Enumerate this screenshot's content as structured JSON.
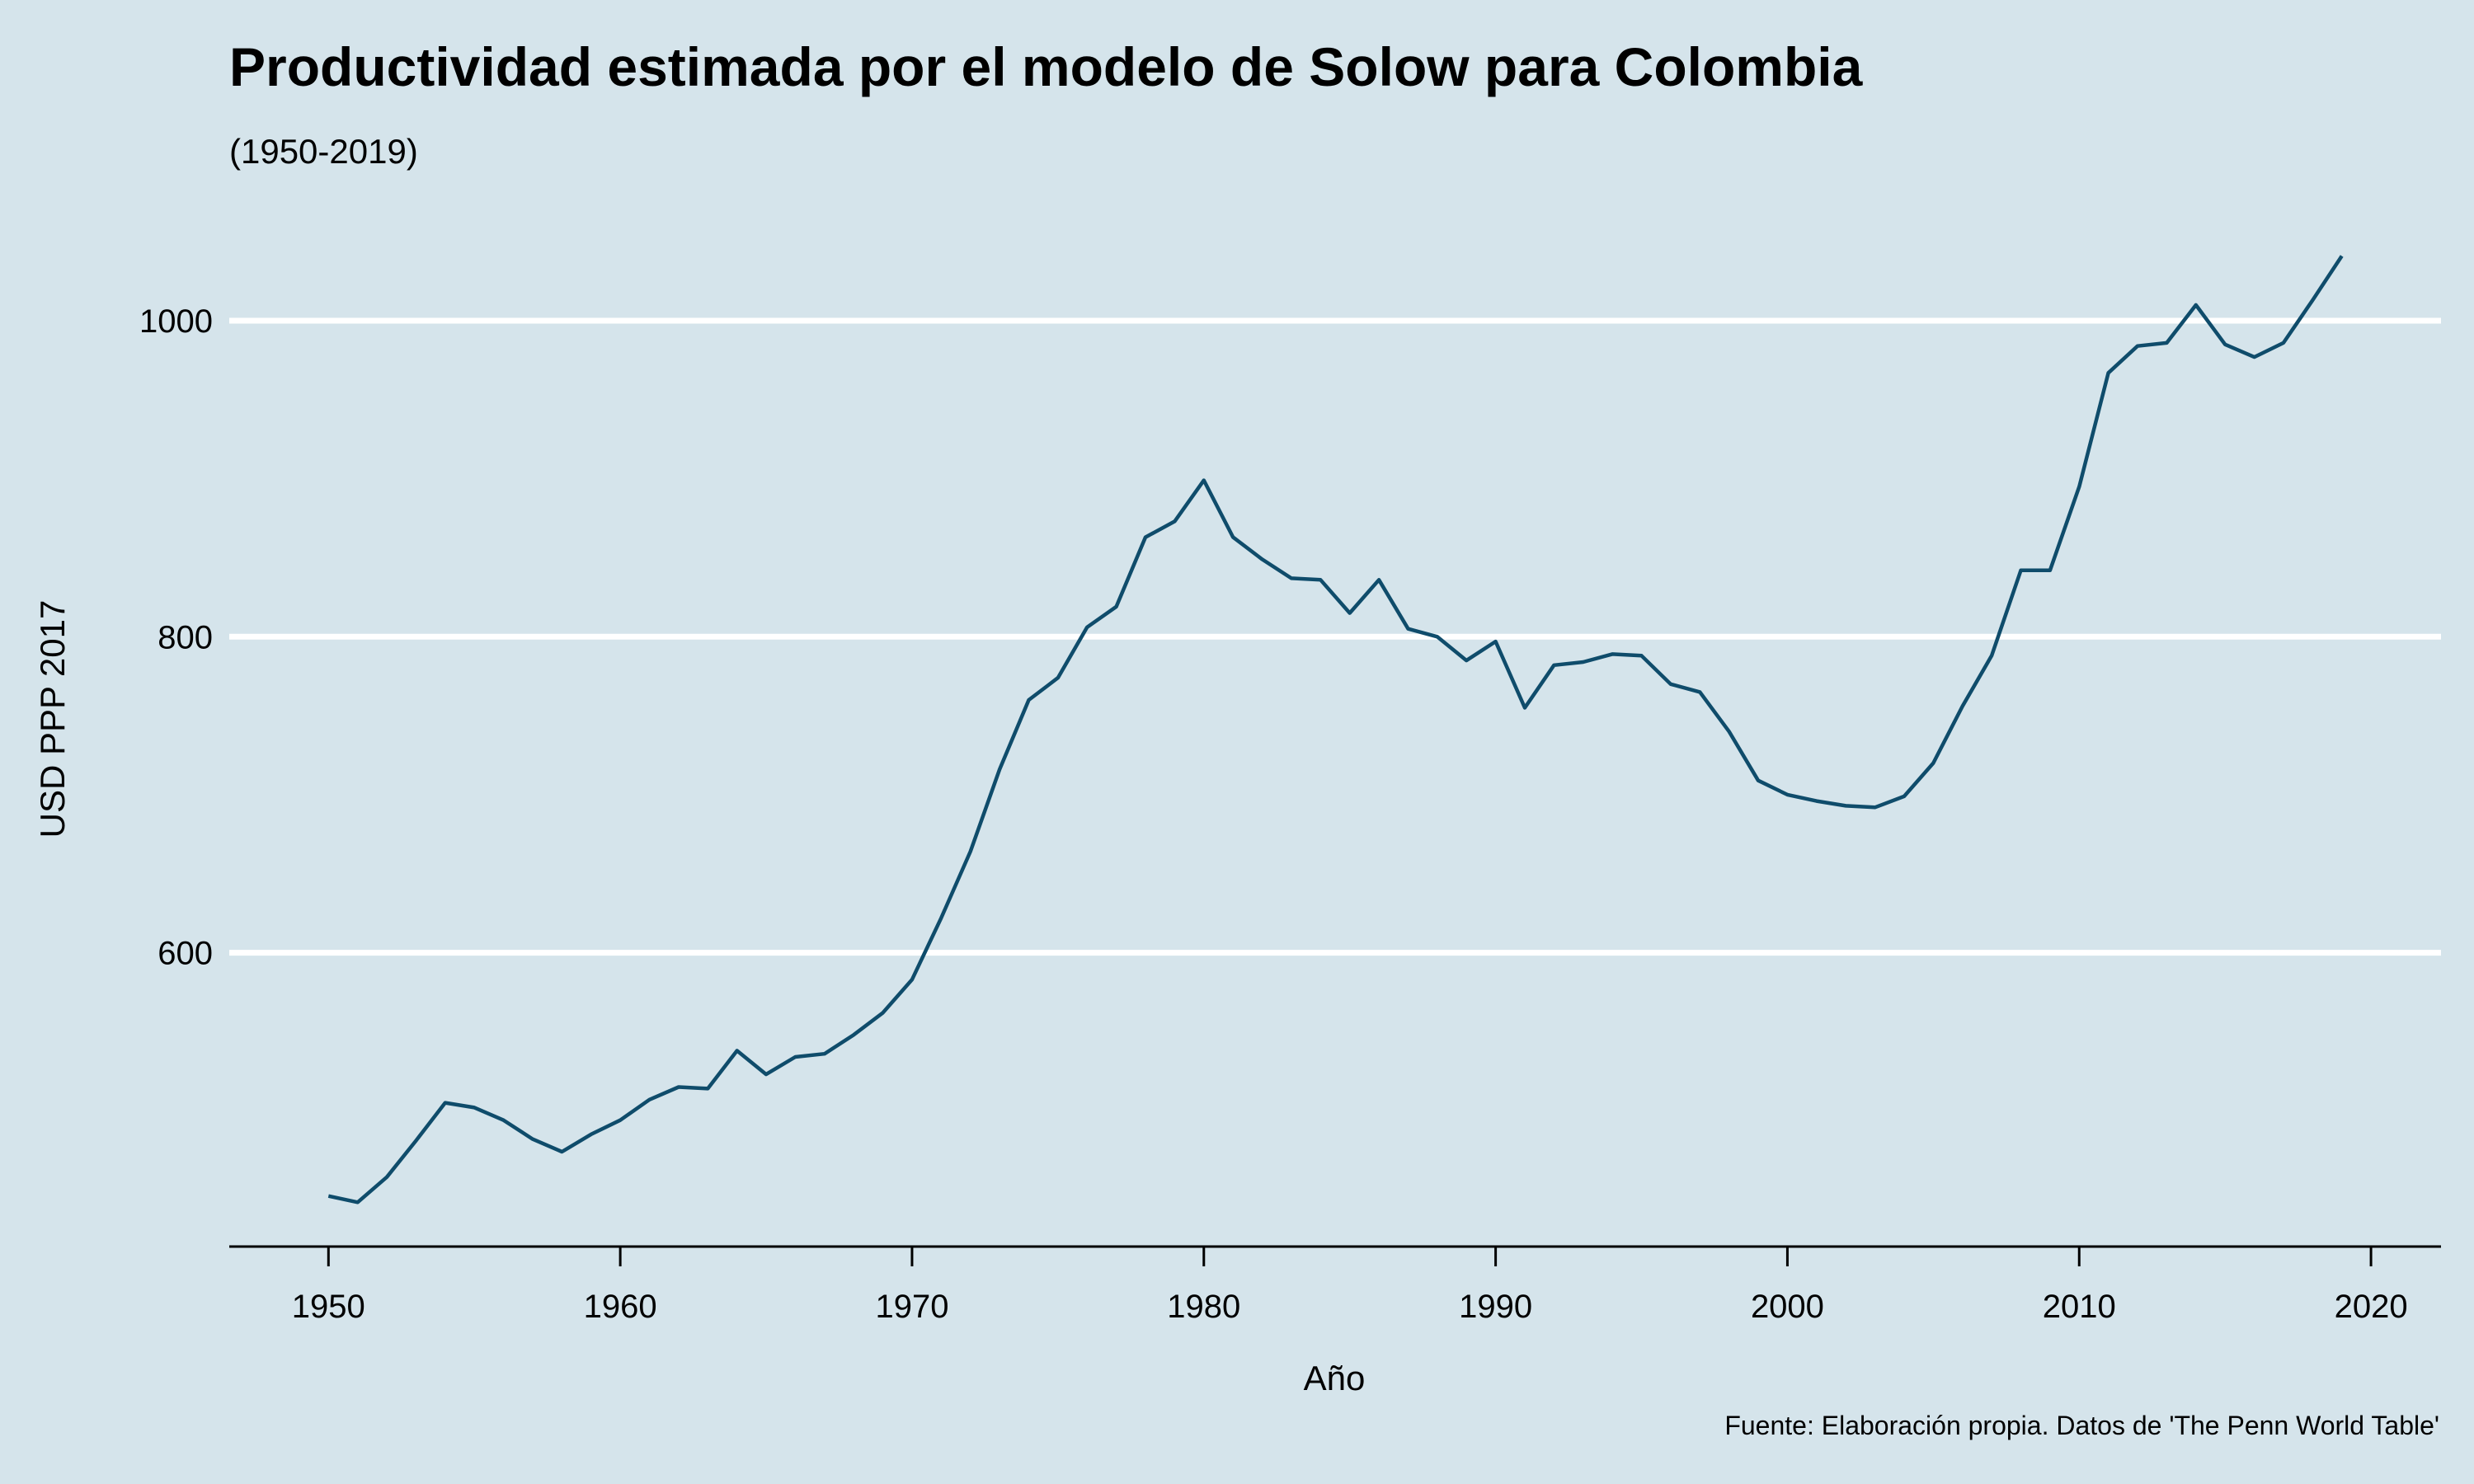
{
  "chart_data": {
    "type": "line",
    "title": "Productividad estimada por el modelo de Solow para Colombia",
    "subtitle": "(1950-2019)",
    "xlabel": "Año",
    "ylabel": "USD PPP 2017",
    "caption": "Fuente: Elaboración propia. Datos de 'The Penn World Table'",
    "xlim": [
      1946.6,
      2022.4
    ],
    "ylim": [
      414,
      1083
    ],
    "x_ticks": [
      1950,
      1960,
      1970,
      1980,
      1990,
      2000,
      2010,
      2020
    ],
    "y_ticks": [
      600,
      800,
      1000
    ],
    "grid": {
      "horizontal": true,
      "vertical": false
    },
    "colors": {
      "background": "#d5e4eb",
      "line": "#0f4c6b",
      "grid": "#ffffff"
    },
    "series": [
      {
        "x": [
          1950,
          1951,
          1952,
          1953,
          1954,
          1955,
          1956,
          1957,
          1958,
          1959,
          1960,
          1961,
          1962,
          1963,
          1964,
          1965,
          1966,
          1967,
          1968,
          1969,
          1970,
          1971,
          1972,
          1973,
          1974,
          1975,
          1976,
          1977,
          1978,
          1979,
          1980,
          1981,
          1982,
          1983,
          1984,
          1985,
          1986,
          1987,
          1988,
          1989,
          1990,
          1991,
          1992,
          1993,
          1994,
          1995,
          1996,
          1997,
          1998,
          1999,
          2000,
          2001,
          2002,
          2003,
          2004,
          2005,
          2006,
          2007,
          2008,
          2009,
          2010,
          2011,
          2012,
          2013,
          2014,
          2015,
          2016,
          2017,
          2018,
          2019
        ],
        "values": [
          446,
          442,
          458,
          481,
          505,
          502,
          494,
          482,
          474,
          485,
          494,
          507,
          515,
          514,
          538,
          523,
          534,
          536,
          548,
          562,
          583,
          622,
          664,
          716,
          760,
          774,
          806,
          819,
          863,
          873,
          899,
          863,
          849,
          837,
          836,
          815,
          836,
          805,
          800,
          785,
          797,
          755,
          782,
          784,
          789,
          788,
          770,
          765,
          740,
          709,
          700,
          696,
          693,
          692,
          699,
          720,
          756,
          788,
          842,
          842,
          895,
          967,
          984,
          986,
          1010,
          985,
          977,
          986,
          1013,
          1041
        ]
      }
    ]
  }
}
